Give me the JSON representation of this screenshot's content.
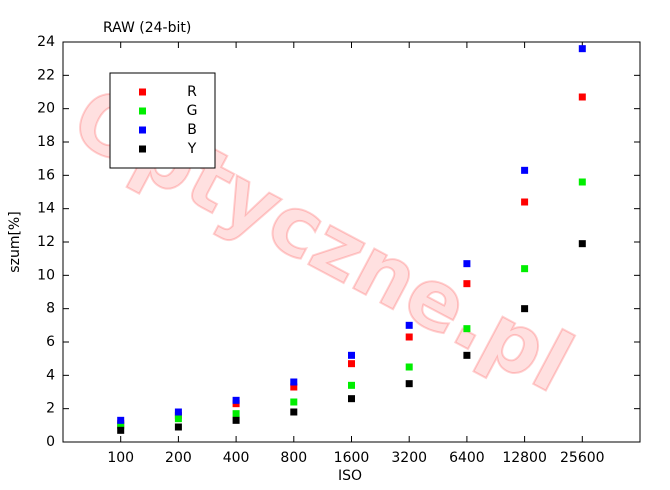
{
  "chart_data": {
    "type": "scatter",
    "title": "RAW (24-bit)",
    "x_label": "ISO",
    "y_label": "szum[%]",
    "watermark": "Optyczne.pl",
    "categories": [
      "100",
      "200",
      "400",
      "800",
      "1600",
      "3200",
      "6400",
      "12800",
      "25600"
    ],
    "series": [
      {
        "name": "R",
        "color": "#ff0000",
        "values": [
          1.1,
          1.6,
          2.3,
          3.3,
          4.7,
          6.3,
          9.5,
          14.4,
          20.7
        ]
      },
      {
        "name": "G",
        "color": "#00ee00",
        "values": [
          1.0,
          1.4,
          1.7,
          2.4,
          3.4,
          4.5,
          6.8,
          10.4,
          15.6
        ]
      },
      {
        "name": "B",
        "color": "#0000ff",
        "values": [
          1.3,
          1.8,
          2.5,
          3.6,
          5.2,
          7.0,
          10.7,
          16.3,
          23.6
        ]
      },
      {
        "name": "Y",
        "color": "#000000",
        "values": [
          0.7,
          0.9,
          1.3,
          1.8,
          2.6,
          3.5,
          5.2,
          8.0,
          11.9
        ]
      }
    ],
    "ylim": [
      0,
      24
    ],
    "yticks": [
      0,
      2,
      4,
      6,
      8,
      10,
      12,
      14,
      16,
      18,
      20,
      22,
      24
    ],
    "grid": false,
    "legend_position": "upper-left"
  }
}
